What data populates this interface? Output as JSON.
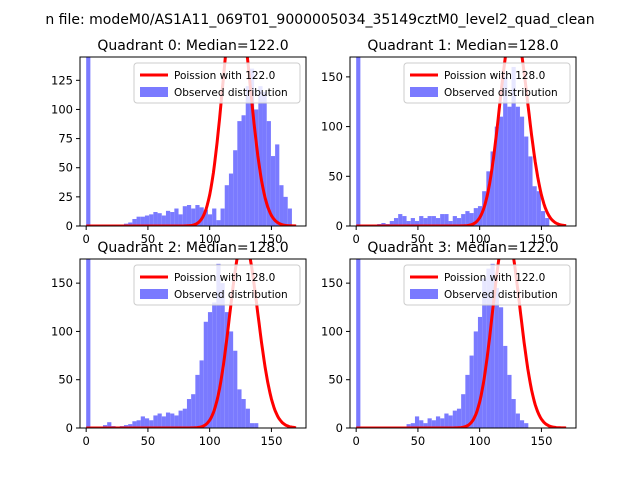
{
  "suptitle": "n file: modeM0/AS1A11_069T01_9000005034_35149cztM0_level2_quad_clean",
  "colors": {
    "hist": "#7a7aff",
    "fit": "#ff0000"
  },
  "chart_data": [
    {
      "type": "bar",
      "title": "Quadrant 0: Median=122.0",
      "median": 122.0,
      "legend": [
        "Poission with 122.0",
        "Observed distribution"
      ],
      "legend_position": "upper-right",
      "xlim": [
        -5,
        178
      ],
      "ylim": [
        0,
        145
      ],
      "xticks": [
        0,
        50,
        100,
        150
      ],
      "yticks": [
        0,
        25,
        50,
        75,
        100,
        125
      ],
      "bin_start": 0,
      "bin_width": 3.4,
      "values": [
        145,
        0,
        0,
        0,
        0,
        0,
        0,
        0,
        1,
        2,
        3,
        6,
        8,
        8,
        9,
        10,
        12,
        11,
        9,
        13,
        12,
        15,
        10,
        17,
        18,
        15,
        18,
        16,
        14,
        10,
        15,
        5,
        15,
        35,
        45,
        65,
        90,
        95,
        120,
        135,
        100,
        120,
        115,
        90,
        60,
        70,
        35,
        25,
        15
      ]
    },
    {
      "type": "bar",
      "title": "Quadrant 1: Median=128.0",
      "median": 128.0,
      "legend": [
        "Poission with 128.0",
        "Observed distribution"
      ],
      "legend_position": "upper-right",
      "xlim": [
        -5,
        178
      ],
      "ylim": [
        0,
        170
      ],
      "xticks": [
        0,
        50,
        100,
        150
      ],
      "yticks": [
        0,
        50,
        100,
        150
      ],
      "bin_start": 0,
      "bin_width": 3.4,
      "values": [
        170,
        0,
        0,
        0,
        1,
        2,
        3,
        2,
        5,
        8,
        12,
        10,
        5,
        8,
        5,
        10,
        8,
        10,
        10,
        8,
        12,
        12,
        5,
        10,
        8,
        12,
        15,
        13,
        18,
        20,
        35,
        55,
        75,
        100,
        110,
        150,
        120,
        160,
        120,
        110,
        90,
        70,
        40,
        35,
        15,
        8
      ]
    },
    {
      "type": "bar",
      "title": "Quadrant 2: Median=128.0",
      "median": 128.0,
      "legend": [
        "Poission with 128.0",
        "Observed distribution"
      ],
      "legend_position": "upper-right",
      "xlim": [
        -5,
        178
      ],
      "ylim": [
        0,
        175
      ],
      "xticks": [
        0,
        50,
        100,
        150
      ],
      "yticks": [
        0,
        50,
        100,
        150
      ],
      "bin_start": 0,
      "bin_width": 3.4,
      "values": [
        175,
        0,
        0,
        0,
        3,
        6,
        2,
        1,
        2,
        3,
        4,
        7,
        8,
        12,
        10,
        8,
        13,
        15,
        12,
        16,
        15,
        13,
        18,
        20,
        30,
        35,
        55,
        70,
        110,
        120,
        130,
        170,
        150,
        120,
        100,
        80,
        40,
        30,
        20,
        5,
        5
      ]
    },
    {
      "type": "bar",
      "title": "Quadrant 3: Median=122.0",
      "median": 122.0,
      "legend": [
        "Poission with 122.0",
        "Observed distribution"
      ],
      "legend_position": "upper-right",
      "xlim": [
        -5,
        178
      ],
      "ylim": [
        0,
        175
      ],
      "xticks": [
        0,
        50,
        100,
        150
      ],
      "yticks": [
        0,
        50,
        100,
        150
      ],
      "bin_start": 0,
      "bin_width": 3.4,
      "values": [
        175,
        0,
        0,
        0,
        0,
        0,
        0,
        0,
        0,
        0,
        0,
        0,
        4,
        5,
        12,
        8,
        5,
        10,
        8,
        12,
        10,
        15,
        13,
        18,
        20,
        35,
        55,
        75,
        100,
        115,
        155,
        165,
        170,
        145,
        125,
        85,
        55,
        30,
        15,
        8,
        5
      ]
    }
  ]
}
